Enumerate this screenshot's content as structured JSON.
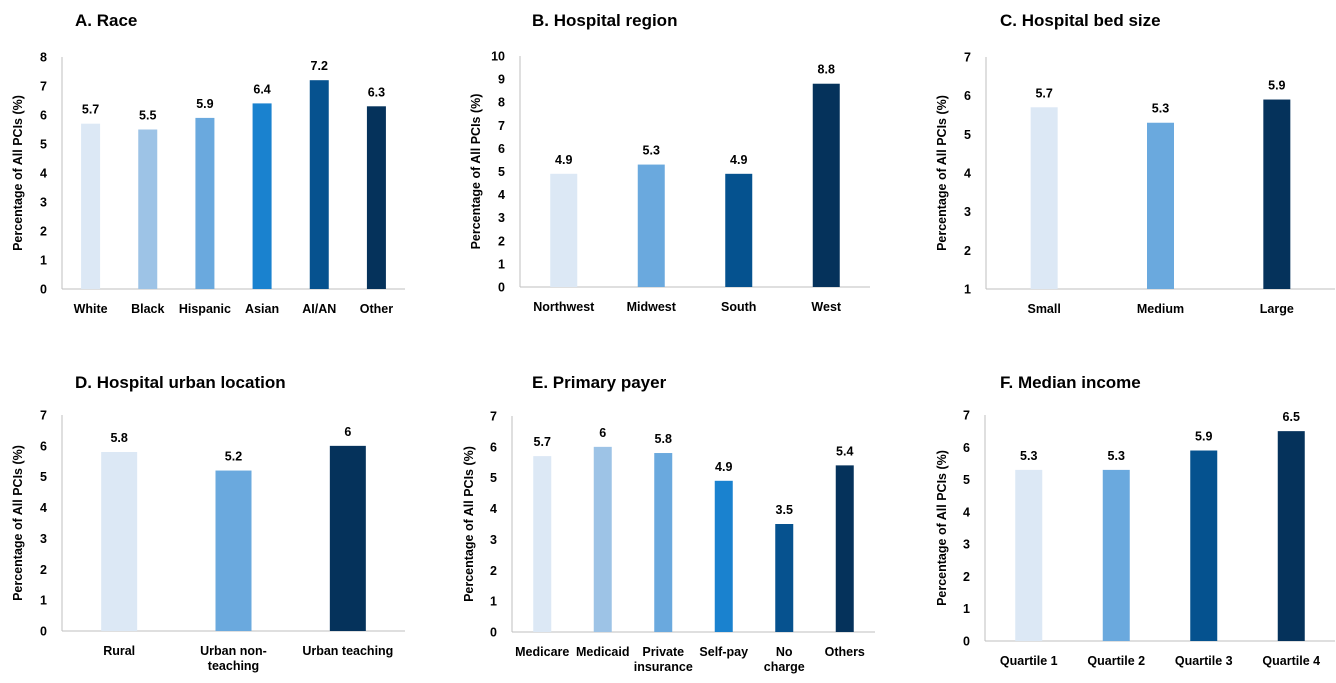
{
  "chart_data": [
    {
      "type": "bar",
      "title": "A. Race",
      "ylabel": "Percentage of All PCIs (%)",
      "ylim": [
        0,
        8
      ],
      "ticks": [
        0,
        1,
        2,
        3,
        4,
        5,
        6,
        7,
        8
      ],
      "categories": [
        [
          "White"
        ],
        [
          "Black"
        ],
        [
          "Hispanic"
        ],
        [
          "Asian"
        ],
        [
          "AI/AN"
        ],
        [
          "Other"
        ]
      ],
      "values": [
        5.7,
        5.5,
        5.9,
        6.4,
        7.2,
        6.3
      ],
      "value_labels": [
        "5.7",
        "5.5",
        "5.9",
        "6.4",
        "7.2",
        "6.3"
      ],
      "colors": [
        "#dce8f5",
        "#9dc3e6",
        "#6aa9de",
        "#1a82cf",
        "#06528f",
        "#05325b"
      ],
      "grid": false
    },
    {
      "type": "bar",
      "title": "B. Hospital region",
      "ylabel": "Percentage of All PCIs (%)",
      "ylim": [
        0,
        10
      ],
      "ticks": [
        0,
        1,
        2,
        3,
        4,
        5,
        6,
        7,
        8,
        9,
        10
      ],
      "categories": [
        [
          "Northwest"
        ],
        [
          "Midwest"
        ],
        [
          "South"
        ],
        [
          "West"
        ]
      ],
      "values": [
        4.9,
        5.3,
        4.9,
        8.8
      ],
      "value_labels": [
        "4.9",
        "5.3",
        "4.9",
        "8.8"
      ],
      "colors": [
        "#dce8f5",
        "#6aa9de",
        "#05528f",
        "#05325b"
      ],
      "grid": false
    },
    {
      "type": "bar",
      "title": "C. Hospital bed size",
      "ylabel": "Percentage of All PCIs (%)",
      "ylim": [
        1,
        7
      ],
      "ticks": [
        1,
        2,
        3,
        4,
        5,
        6,
        7
      ],
      "categories": [
        [
          "Small"
        ],
        [
          "Medium"
        ],
        [
          "Large"
        ]
      ],
      "values": [
        5.7,
        5.3,
        5.9
      ],
      "value_labels": [
        "5.7",
        "5.3",
        "5.9"
      ],
      "colors": [
        "#dce8f5",
        "#6aa9de",
        "#05325b"
      ],
      "grid": false
    },
    {
      "type": "bar",
      "title": "D. Hospital urban location",
      "ylabel": "Percentage of All PCIs (%)",
      "ylim": [
        0,
        7
      ],
      "ticks": [
        0,
        1,
        2,
        3,
        4,
        5,
        6,
        7
      ],
      "categories": [
        [
          "Rural"
        ],
        [
          "Urban non-",
          "teaching"
        ],
        [
          "Urban teaching"
        ]
      ],
      "values": [
        5.8,
        5.2,
        6
      ],
      "value_labels": [
        "5.8",
        "5.2",
        "6"
      ],
      "colors": [
        "#dce8f5",
        "#6aa9de",
        "#05325b"
      ],
      "grid": false
    },
    {
      "type": "bar",
      "title": "E. Primary payer",
      "ylabel": "Percentage of All PCIs (%)",
      "ylim": [
        0,
        7
      ],
      "ticks": [
        0,
        1,
        2,
        3,
        4,
        5,
        6,
        7
      ],
      "categories": [
        [
          "Medicare"
        ],
        [
          "Medicaid"
        ],
        [
          "Private",
          "insurance"
        ],
        [
          "Self-pay"
        ],
        [
          "No",
          "charge"
        ],
        [
          "Others"
        ]
      ],
      "values": [
        5.7,
        6,
        5.8,
        4.9,
        3.5,
        5.4
      ],
      "value_labels": [
        "5.7",
        "6",
        "5.8",
        "4.9",
        "3.5",
        "5.4"
      ],
      "colors": [
        "#dce8f5",
        "#9dc3e6",
        "#6aa9de",
        "#1a82cf",
        "#06528f",
        "#05325b"
      ],
      "grid": false
    },
    {
      "type": "bar",
      "title": "F. Median income",
      "ylabel": "Percentage of All PCIs (%)",
      "ylim": [
        0,
        7
      ],
      "ticks": [
        0,
        1,
        2,
        3,
        4,
        5,
        6,
        7
      ],
      "categories": [
        [
          "Quartile 1"
        ],
        [
          "Quartile 2"
        ],
        [
          "Quartile 3"
        ],
        [
          "Quartile 4"
        ]
      ],
      "values": [
        5.3,
        5.3,
        5.9,
        6.5
      ],
      "value_labels": [
        "5.3",
        "5.3",
        "5.9",
        "6.5"
      ],
      "colors": [
        "#dce8f5",
        "#6aa9de",
        "#05528f",
        "#05325b"
      ],
      "grid": false
    }
  ]
}
